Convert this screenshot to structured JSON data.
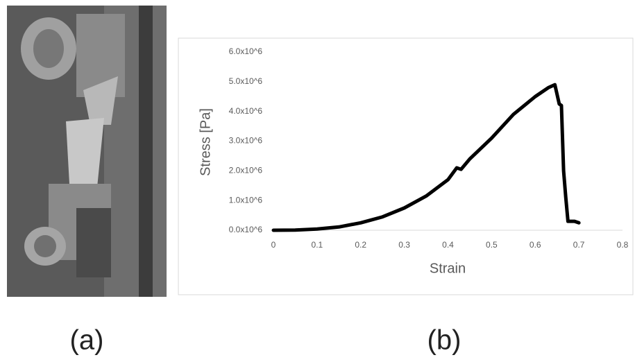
{
  "panel_labels": [
    "(a)",
    "(b)"
  ],
  "chart_data": {
    "type": "line",
    "x_label": "Strain",
    "y_label": "Stress [Pa]",
    "xlim": [
      0,
      0.8
    ],
    "xticks": [
      0,
      0.1,
      0.2,
      0.3,
      0.4,
      0.5,
      0.6,
      0.7,
      0.8
    ],
    "ylim": [
      0,
      6000000
    ],
    "yticks": [
      {
        "value": 0,
        "label": "0.0x10^6"
      },
      {
        "value": 1000000,
        "label": "1.0x10^6"
      },
      {
        "value": 2000000,
        "label": "2.0x10^6"
      },
      {
        "value": 3000000,
        "label": "3.0x10^6"
      },
      {
        "value": 4000000,
        "label": "4.0x10^6"
      },
      {
        "value": 5000000,
        "label": "5.0x10^6"
      },
      {
        "value": 6000000,
        "label": "6.0x10^6"
      }
    ],
    "grid": false,
    "series": [
      {
        "color": "#000000",
        "x": [
          0,
          0.05,
          0.1,
          0.15,
          0.2,
          0.25,
          0.3,
          0.35,
          0.4,
          0.42,
          0.43,
          0.45,
          0.5,
          0.55,
          0.6,
          0.63,
          0.645,
          0.655,
          0.66,
          0.665,
          0.67,
          0.675,
          0.69,
          0.7
        ],
        "values": [
          0,
          5000,
          40000,
          110000,
          250000,
          450000,
          750000,
          1150000,
          1700000,
          2100000,
          2050000,
          2400000,
          3100000,
          3900000,
          4500000,
          4800000,
          4900000,
          4250000,
          4200000,
          2000000,
          1100000,
          300000,
          300000,
          250000
        ]
      }
    ]
  }
}
